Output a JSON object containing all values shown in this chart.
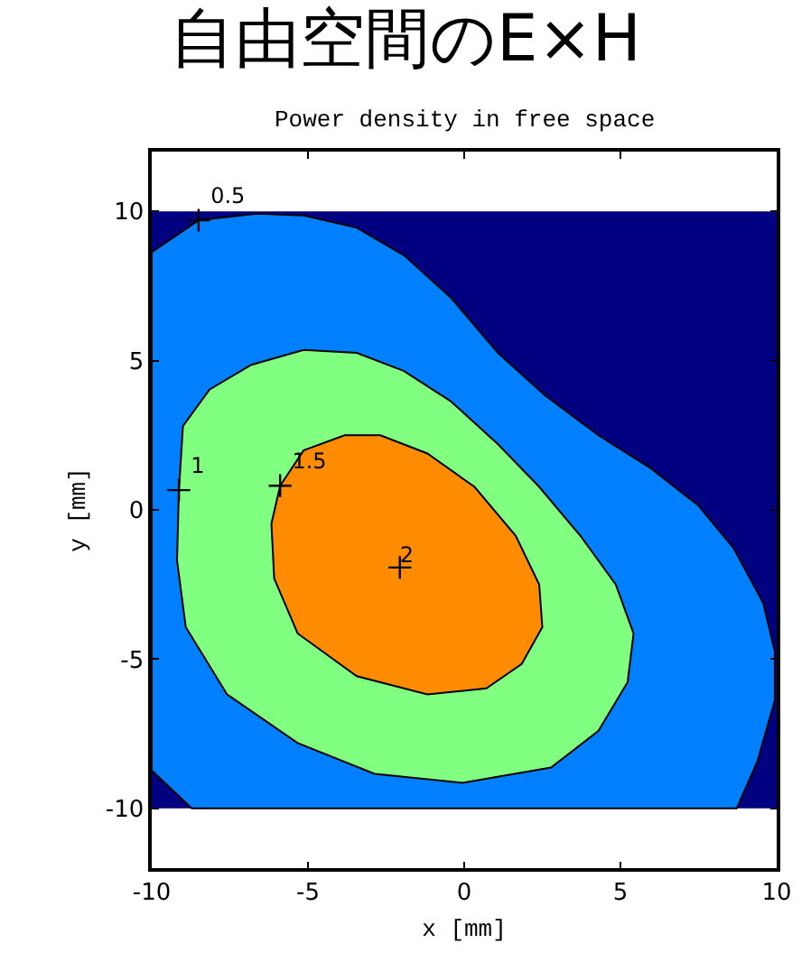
{
  "chart_data": {
    "type": "area",
    "title": "自由空間のE×H",
    "subtitle": "Power density in free space",
    "xlabel": "x [mm]",
    "ylabel": "y [mm]",
    "xlim": [
      -10,
      10
    ],
    "ylim": [
      -12,
      12
    ],
    "xticks": [
      -10,
      -5,
      0,
      5,
      10
    ],
    "yticks": [
      -10,
      -5,
      0,
      5,
      10
    ],
    "grid": false,
    "legend": false,
    "bands": [
      {
        "axis": "y",
        "from": -10,
        "to": 10,
        "color": "#000080"
      }
    ],
    "series": [
      {
        "name": "0.5",
        "color": "#0080ff",
        "x": [
          -8.5,
          -6.64,
          -5.14,
          -3.44,
          -1.93,
          -0.42,
          1.08,
          2.59,
          4.29,
          5.99,
          7.49,
          8.62,
          9.57,
          9.94,
          9.94,
          9.38,
          8.72,
          -8.72,
          -10,
          -10,
          -8.5
        ],
        "values": [
          9.7,
          9.92,
          9.86,
          9.45,
          8.53,
          7.1,
          5.26,
          3.83,
          2.5,
          1.38,
          0.15,
          -1.28,
          -3.12,
          -4.75,
          -6.38,
          -8.43,
          -10,
          -10,
          -8.73,
          8.63,
          9.7
        ]
      },
      {
        "name": "1",
        "color": "#80ff80",
        "x": [
          -9.13,
          -9.0,
          -8.15,
          -6.83,
          -5.14,
          -3.44,
          -1.93,
          -0.42,
          1.08,
          2.4,
          3.72,
          4.85,
          5.42,
          5.23,
          4.29,
          2.78,
          -0.05,
          -2.87,
          -5.33,
          -7.59,
          -8.91,
          -9.19,
          -9.13
        ],
        "values": [
          0.66,
          2.81,
          4.03,
          4.85,
          5.36,
          5.26,
          4.65,
          3.63,
          2.2,
          0.77,
          -0.87,
          -2.5,
          -4.14,
          -5.77,
          -7.41,
          -8.63,
          -9.14,
          -8.84,
          -7.81,
          -6.18,
          -3.93,
          -1.69,
          0.66
        ]
      },
      {
        "name": "1.5",
        "color": "#ff8c00",
        "x": [
          -5.89,
          -5.14,
          -3.82,
          -2.69,
          -1.18,
          0.33,
          1.65,
          2.4,
          2.5,
          1.84,
          0.71,
          -1.18,
          -3.44,
          -5.33,
          -6.08,
          -6.17,
          -5.89
        ],
        "values": [
          0.81,
          1.99,
          2.5,
          2.5,
          1.89,
          0.77,
          -0.87,
          -2.5,
          -3.93,
          -5.16,
          -5.98,
          -6.18,
          -5.57,
          -4.14,
          -2.3,
          -0.46,
          0.81
        ]
      },
      {
        "name": "2",
        "type": "scatter",
        "color": "#000000",
        "x": [
          -2.06
        ],
        "values": [
          -1.93
        ]
      }
    ]
  }
}
